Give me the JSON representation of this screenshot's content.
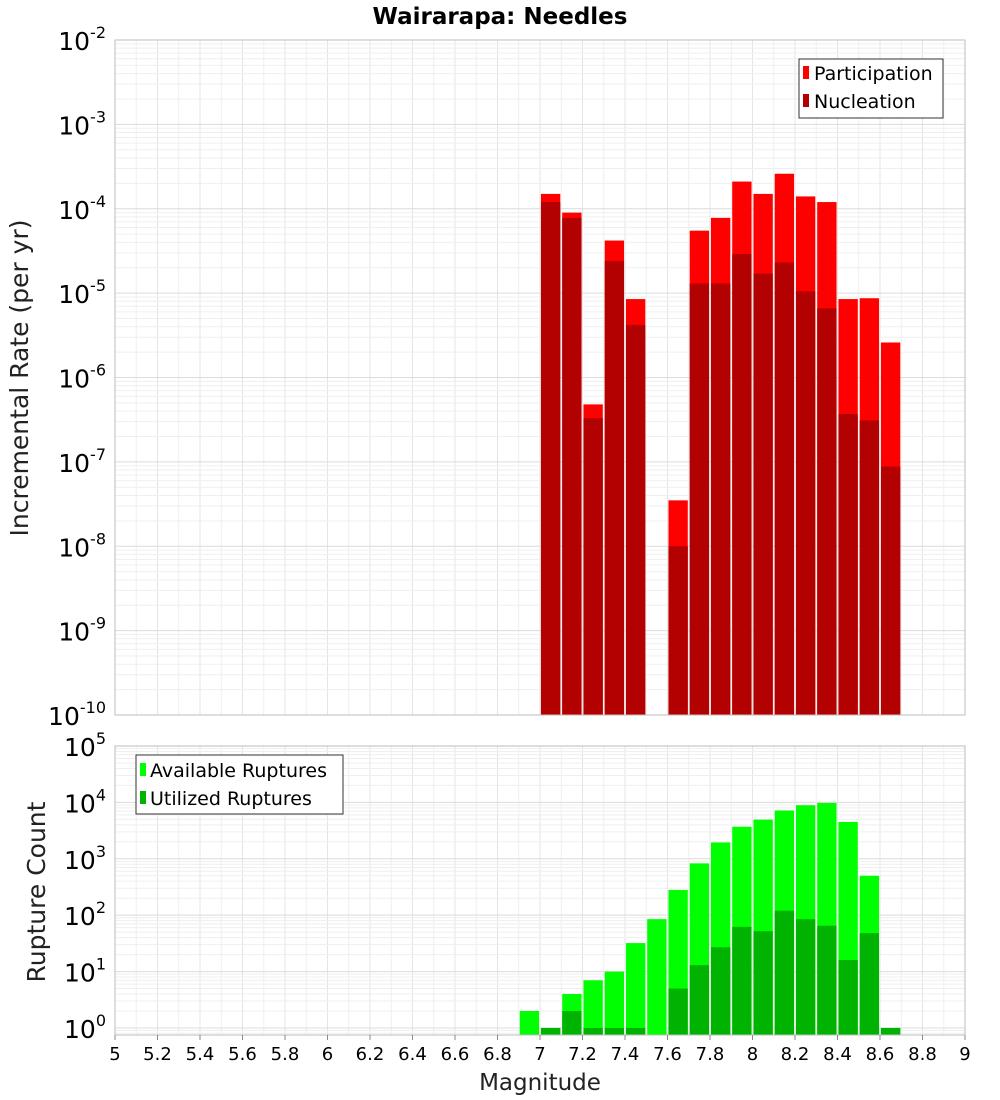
{
  "title": "Wairarapa: Needles",
  "xlabel": "Magnitude",
  "colors": {
    "participation": "#ff0000",
    "nucleation": "#b30000",
    "available": "#00ff00",
    "utilized": "#00b300"
  },
  "chart_data": [
    {
      "type": "bar",
      "panel": "top",
      "ylabel": "Incremental Rate (per yr)",
      "yscale": "log",
      "ylim": [
        1e-10,
        0.01
      ],
      "xlim": [
        5,
        9
      ],
      "grid": true,
      "legend_position": "top-right",
      "legend": [
        "Participation",
        "Nucleation"
      ],
      "x": [
        7.05,
        7.15,
        7.25,
        7.35,
        7.45,
        7.65,
        7.75,
        7.85,
        7.95,
        8.05,
        8.15,
        8.25,
        8.35,
        8.45,
        8.55,
        8.65
      ],
      "series": [
        {
          "name": "Participation",
          "values": [
            0.00015,
            9e-05,
            4.8e-07,
            4.2e-05,
            8.5e-06,
            3.5e-08,
            5.5e-05,
            7.8e-05,
            0.00021,
            0.00015,
            0.00026,
            0.00014,
            0.00012,
            8.5e-06,
            8.7e-06,
            2.6e-06
          ]
        },
        {
          "name": "Nucleation",
          "values": [
            0.00012,
            7.8e-05,
            3.3e-07,
            2.4e-05,
            4.2e-06,
            1e-08,
            1.3e-05,
            1.3e-05,
            2.9e-05,
            1.7e-05,
            2.3e-05,
            1.05e-05,
            6.6e-06,
            3.7e-07,
            3.1e-07,
            8.8e-08
          ]
        }
      ],
      "yticks": [
        {
          "base": "10",
          "exp": "-2"
        },
        {
          "base": "10",
          "exp": "-3"
        },
        {
          "base": "10",
          "exp": "-4"
        },
        {
          "base": "10",
          "exp": "-5"
        },
        {
          "base": "10",
          "exp": "-6"
        },
        {
          "base": "10",
          "exp": "-7"
        },
        {
          "base": "10",
          "exp": "-8"
        },
        {
          "base": "10",
          "exp": "-9"
        },
        {
          "base": "10",
          "exp": "-10"
        }
      ]
    },
    {
      "type": "bar",
      "panel": "bottom",
      "ylabel": "Rupture Count",
      "yscale": "log",
      "ylim": [
        0.75,
        100000.0
      ],
      "xlim": [
        5,
        9
      ],
      "grid": true,
      "legend_position": "top-left",
      "legend": [
        "Available Ruptures",
        "Utilized Ruptures"
      ],
      "x": [
        6.95,
        7.05,
        7.15,
        7.25,
        7.35,
        7.45,
        7.55,
        7.65,
        7.75,
        7.85,
        7.95,
        8.05,
        8.15,
        8.25,
        8.35,
        8.45,
        8.55,
        8.65
      ],
      "series": [
        {
          "name": "Available Ruptures",
          "values": [
            2,
            1,
            4,
            7,
            10,
            32,
            85,
            280,
            830,
            1950,
            3700,
            4950,
            7200,
            8900,
            9800,
            4500,
            500,
            1
          ]
        },
        {
          "name": "Utilized Ruptures",
          "values": [
            0,
            1,
            2,
            1,
            1,
            1,
            0,
            5,
            13,
            27,
            62,
            52,
            120,
            85,
            65,
            16,
            48,
            1
          ]
        }
      ],
      "yticks": [
        {
          "base": "10",
          "exp": "5"
        },
        {
          "base": "10",
          "exp": "4"
        },
        {
          "base": "10",
          "exp": "3"
        },
        {
          "base": "10",
          "exp": "2"
        },
        {
          "base": "10",
          "exp": "1"
        },
        {
          "base": "10",
          "exp": "0"
        }
      ]
    }
  ],
  "xticks": [
    "5",
    "5.2",
    "5.4",
    "5.6",
    "5.8",
    "6",
    "6.2",
    "6.4",
    "6.6",
    "6.8",
    "7",
    "7.2",
    "7.4",
    "7.6",
    "7.8",
    "8",
    "8.2",
    "8.4",
    "8.6",
    "8.8",
    "9"
  ]
}
